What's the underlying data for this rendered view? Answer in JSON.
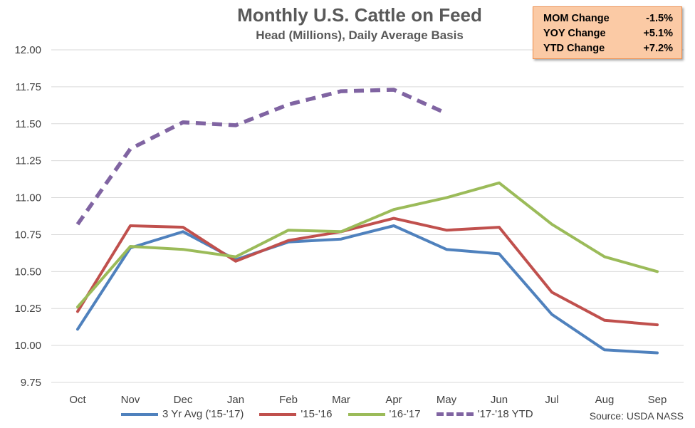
{
  "header": {
    "title": "Monthly U.S. Cattle on Feed",
    "subtitle": "Head (Millions), Daily Average Basis"
  },
  "stats": [
    {
      "label": "MOM Change",
      "value": "-1.5%"
    },
    {
      "label": "YOY Change",
      "value": "+5.1%"
    },
    {
      "label": "YTD Change",
      "value": "+7.2%"
    }
  ],
  "source": "Source: USDA NASS",
  "chart_data": {
    "type": "line",
    "title": "Monthly U.S. Cattle on Feed",
    "subtitle": "Head (Millions), Daily Average Basis",
    "categories": [
      "Oct",
      "Nov",
      "Dec",
      "Jan",
      "Feb",
      "Mar",
      "Apr",
      "May",
      "Jun",
      "Jul",
      "Aug",
      "Sep"
    ],
    "ylim": [
      9.75,
      12.0
    ],
    "yticks": [
      "9.75",
      "10.00",
      "10.25",
      "10.50",
      "10.75",
      "11.00",
      "11.25",
      "11.50",
      "11.75",
      "12.00"
    ],
    "grid": true,
    "legend_position": "bottom",
    "series": [
      {
        "name": "3 Yr Avg ('15-'17)",
        "color": "#4f81bd",
        "style": "solid",
        "values": [
          10.11,
          10.66,
          10.77,
          10.58,
          10.7,
          10.72,
          10.81,
          10.65,
          10.62,
          10.21,
          9.97,
          9.95
        ]
      },
      {
        "name": "'15-'16",
        "color": "#c0504d",
        "style": "solid",
        "values": [
          10.23,
          10.81,
          10.8,
          10.57,
          10.71,
          10.77,
          10.86,
          10.78,
          10.8,
          10.36,
          10.17,
          10.14
        ]
      },
      {
        "name": "'16-'17",
        "color": "#9bbb59",
        "style": "solid",
        "values": [
          10.26,
          10.67,
          10.65,
          10.6,
          10.78,
          10.77,
          10.92,
          11.0,
          11.1,
          10.82,
          10.6,
          10.5
        ]
      },
      {
        "name": "'17-'18 YTD",
        "color": "#8064a2",
        "style": "dashed",
        "values": [
          10.82,
          11.33,
          11.51,
          11.49,
          11.63,
          11.72,
          11.73,
          11.57,
          null,
          null,
          null,
          null
        ]
      }
    ]
  }
}
